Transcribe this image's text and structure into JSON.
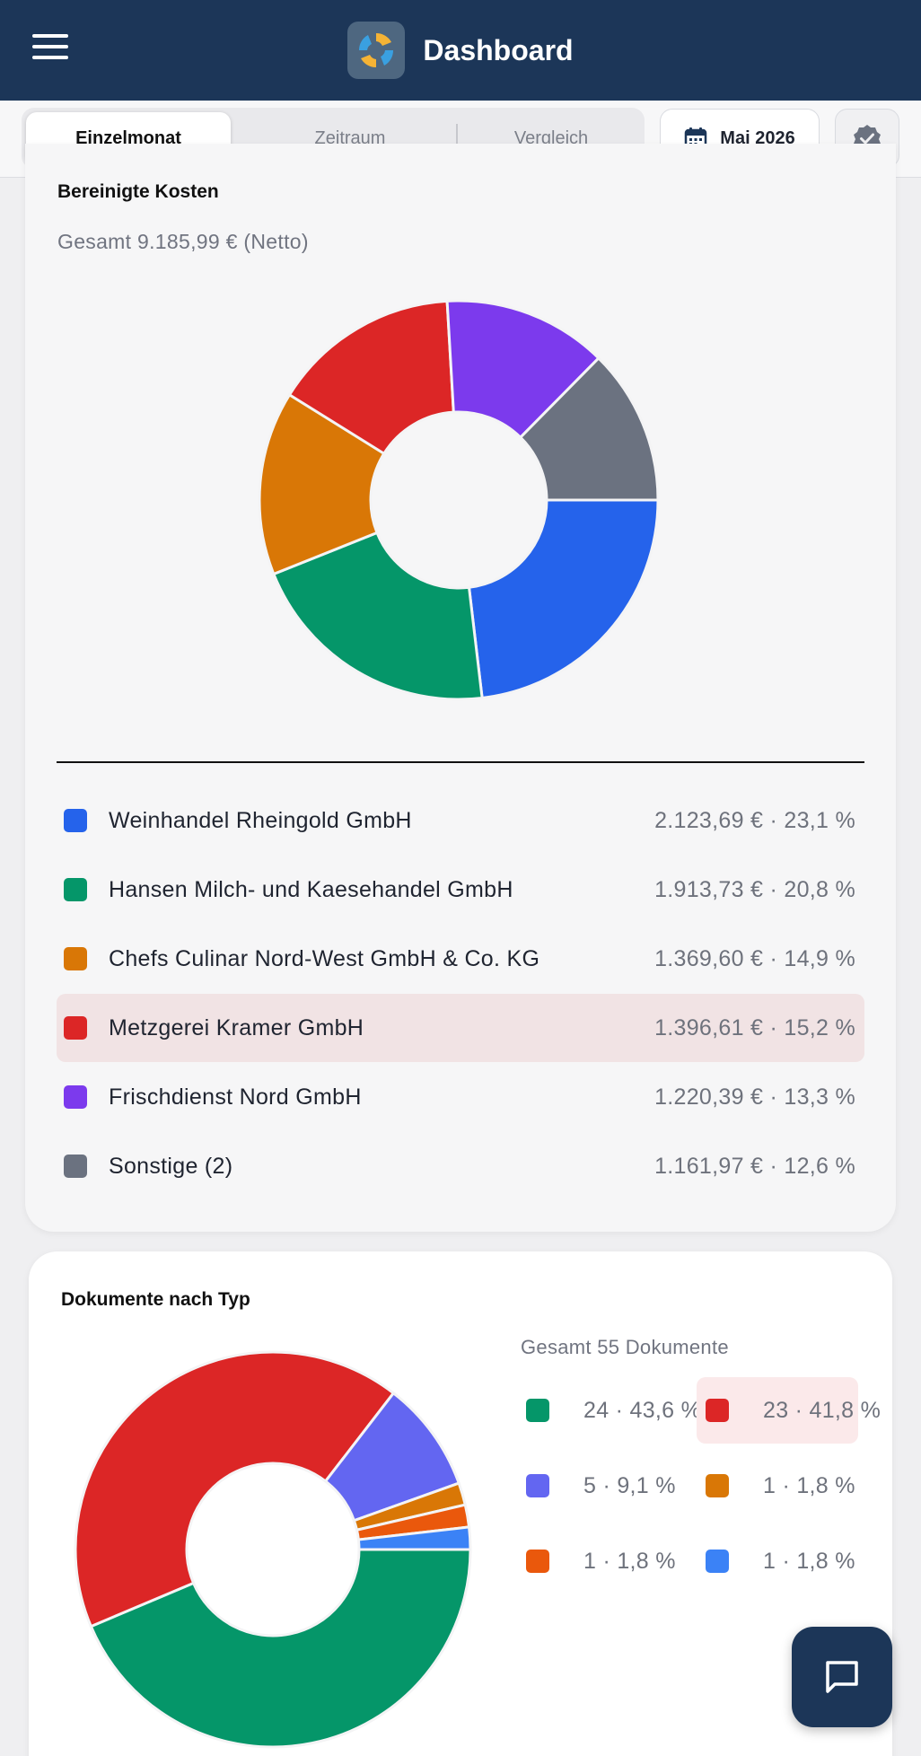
{
  "header": {
    "title": "Dashboard",
    "menu_icon": "hamburger-menu-icon",
    "logo_icon": "app-logo-icon"
  },
  "tabs": [
    {
      "label": "Einzelmonat",
      "active": true
    },
    {
      "label": "Zeitraum",
      "active": false
    },
    {
      "label": "Vergleich",
      "active": false
    }
  ],
  "date_picker": {
    "label": "Mai 2026",
    "icon": "calendar-icon"
  },
  "verify_icon": "verified-badge-icon",
  "costs_card": {
    "title": "Bereinigte Kosten",
    "total": "Gesamt 9.185,99 € (Netto)",
    "items": [
      {
        "name": "Weinhandel Rheingold GmbH",
        "value": "2.123,69 € · 23,1 %",
        "color": "#2563eb",
        "share": 23.1
      },
      {
        "name": "Hansen Milch- und Kaesehandel GmbH",
        "value": "1.913,73 € · 20,8 %",
        "color": "#059669",
        "share": 20.8
      },
      {
        "name": "Chefs Culinar Nord-West GmbH & Co. KG",
        "value": "1.369,60 € · 14,9 %",
        "color": "#d97706",
        "share": 14.9
      },
      {
        "name": "Metzgerei Kramer GmbH",
        "value": "1.396,61 € · 15,2 %",
        "color": "#dc2626",
        "share": 15.2,
        "highlighted": true
      },
      {
        "name": "Frischdienst Nord GmbH",
        "value": "1.220,39 € · 13,3 %",
        "color": "#7c3aed",
        "share": 13.3
      },
      {
        "name": "Sonstige (2)",
        "value": "1.161,97 € · 12,6 %",
        "color": "#6b7280",
        "share": 12.6
      }
    ]
  },
  "documents_card": {
    "title": "Dokumente nach Typ",
    "total": "Gesamt 55 Dokumente",
    "items": [
      {
        "value": "24 · 43,6 %",
        "color": "#059669",
        "count": 24
      },
      {
        "value": "23 · 41,8 %",
        "color": "#dc2626",
        "count": 23,
        "highlighted": true
      },
      {
        "value": "5 · 9,1 %",
        "color": "#6366f1",
        "count": 5
      },
      {
        "value": "1 · 1,8 %",
        "color": "#d97706",
        "count": 1
      },
      {
        "value": "1 · 1,8 %",
        "color": "#ea580c",
        "count": 1
      },
      {
        "value": "1 · 1,8 %",
        "color": "#3b82f6",
        "count": 1
      }
    ]
  },
  "fab_icon": "chat-icon"
}
